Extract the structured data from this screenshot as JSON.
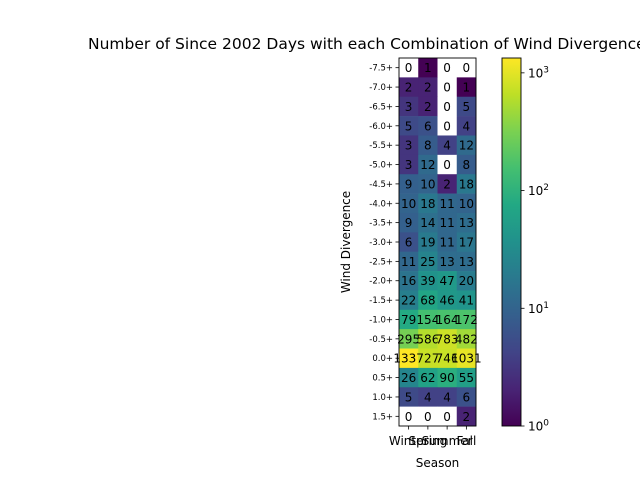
{
  "chart_data": {
    "type": "heatmap",
    "title": "Number of Since 2002 Days with each Combination of Wind Divergence",
    "xlabel": "Season",
    "ylabel": "Wind Divergence",
    "x_categories": [
      "Winter",
      "Spring",
      "Summer",
      "Fall"
    ],
    "y_categories": [
      "-7.5+",
      "-7.0+",
      "-6.5+",
      "-6.0+",
      "-5.5+",
      "-5.0+",
      "-4.5+",
      "-4.0+",
      "-3.5+",
      "-3.0+",
      "-2.5+",
      "-2.0+",
      "-1.5+",
      "-1.0+",
      "-0.5+",
      "0.0+",
      "0.5+",
      "1.0+",
      "1.5+"
    ],
    "values": [
      [
        0,
        1,
        0,
        0
      ],
      [
        2,
        2,
        0,
        1
      ],
      [
        3,
        2,
        0,
        5
      ],
      [
        5,
        6,
        0,
        4
      ],
      [
        3,
        8,
        4,
        12
      ],
      [
        3,
        12,
        0,
        8
      ],
      [
        9,
        10,
        2,
        18
      ],
      [
        10,
        18,
        11,
        10
      ],
      [
        9,
        14,
        11,
        13
      ],
      [
        6,
        19,
        11,
        17
      ],
      [
        11,
        25,
        13,
        13
      ],
      [
        16,
        39,
        47,
        20
      ],
      [
        22,
        68,
        46,
        41
      ],
      [
        79,
        154,
        164,
        172
      ],
      [
        295,
        586,
        783,
        482
      ],
      [
        1337,
        727,
        746,
        1031
      ],
      [
        26,
        62,
        90,
        55
      ],
      [
        5,
        4,
        4,
        6
      ],
      [
        0,
        0,
        0,
        2
      ]
    ],
    "color_scale": "log",
    "colormap": "viridis",
    "colorbar": {
      "range": [
        1,
        1337
      ],
      "ticks": [
        {
          "value": 1,
          "base": "10",
          "exp": "0"
        },
        {
          "value": 10,
          "base": "10",
          "exp": "1"
        },
        {
          "value": 100,
          "base": "10",
          "exp": "2"
        },
        {
          "value": 1000,
          "base": "10",
          "exp": "3"
        }
      ]
    },
    "zero_color": "#ffffff",
    "grid": false
  }
}
